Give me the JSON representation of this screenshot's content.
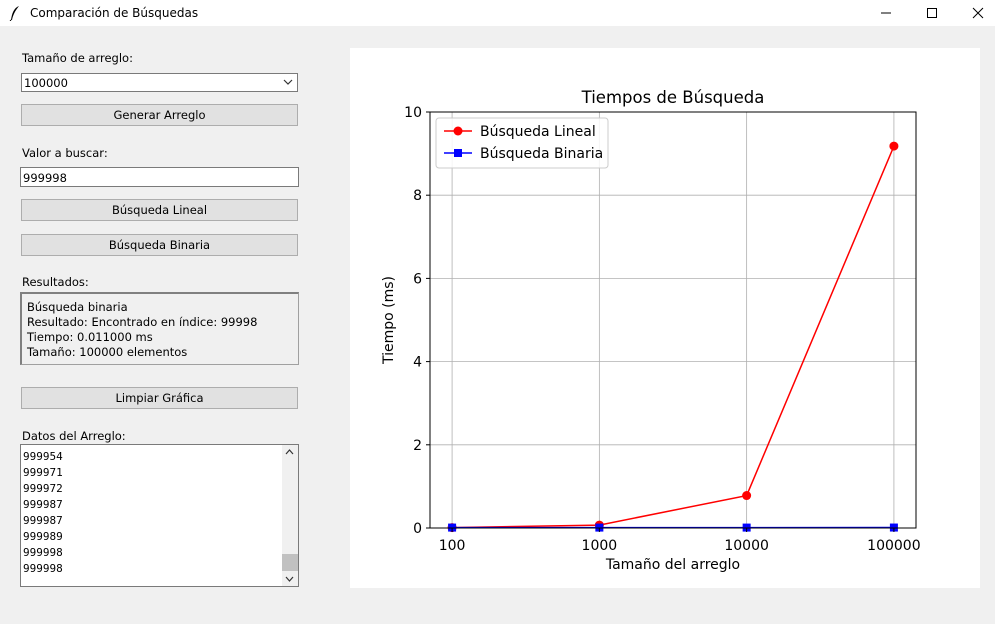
{
  "window": {
    "title": "Comparación de Búsquedas",
    "icon": "feather-icon",
    "controls": [
      "minimize-icon",
      "maximize-icon",
      "close-icon"
    ]
  },
  "sidebar": {
    "size_label": "Tamaño de arreglo:",
    "size_selected": "100000",
    "generate_button": "Generar Arreglo",
    "search_value_label": "Valor a buscar:",
    "search_value": "999998",
    "linear_button": "Búsqueda Lineal",
    "binary_button": "Búsqueda Binaria",
    "results_label": "Resultados:",
    "results_lines": [
      "Búsqueda binaria",
      "Resultado: Encontrado en índice: 99998",
      "Tiempo: 0.011000 ms",
      "Tamaño: 100000 elementos"
    ],
    "clear_button": "Limpiar Gráfica",
    "array_data_label": "Datos del Arreglo:",
    "array_items": [
      "999954",
      "999971",
      "999972",
      "999987",
      "999987",
      "999989",
      "999998",
      "999998"
    ]
  },
  "chart_data": {
    "type": "line",
    "title": "Tiempos de Búsqueda",
    "xlabel": "Tamaño del arreglo",
    "ylabel": "Tiempo (ms)",
    "x": [
      100,
      1000,
      10000,
      100000
    ],
    "x_tick_labels": [
      "100",
      "1000",
      "10000",
      "100000"
    ],
    "x_scale": "log",
    "ylim": [
      0,
      10
    ],
    "y_ticks": [
      0,
      2,
      4,
      6,
      8,
      10
    ],
    "grid": true,
    "legend_position": "top-left",
    "series": [
      {
        "name": "Búsqueda Lineal",
        "values": [
          0.01,
          0.07,
          0.78,
          9.18
        ],
        "color": "#ff0000",
        "marker": "circle"
      },
      {
        "name": "Búsqueda Binaria",
        "values": [
          0.01,
          0.01,
          0.01,
          0.011
        ],
        "color": "#0000ff",
        "marker": "square"
      }
    ]
  }
}
